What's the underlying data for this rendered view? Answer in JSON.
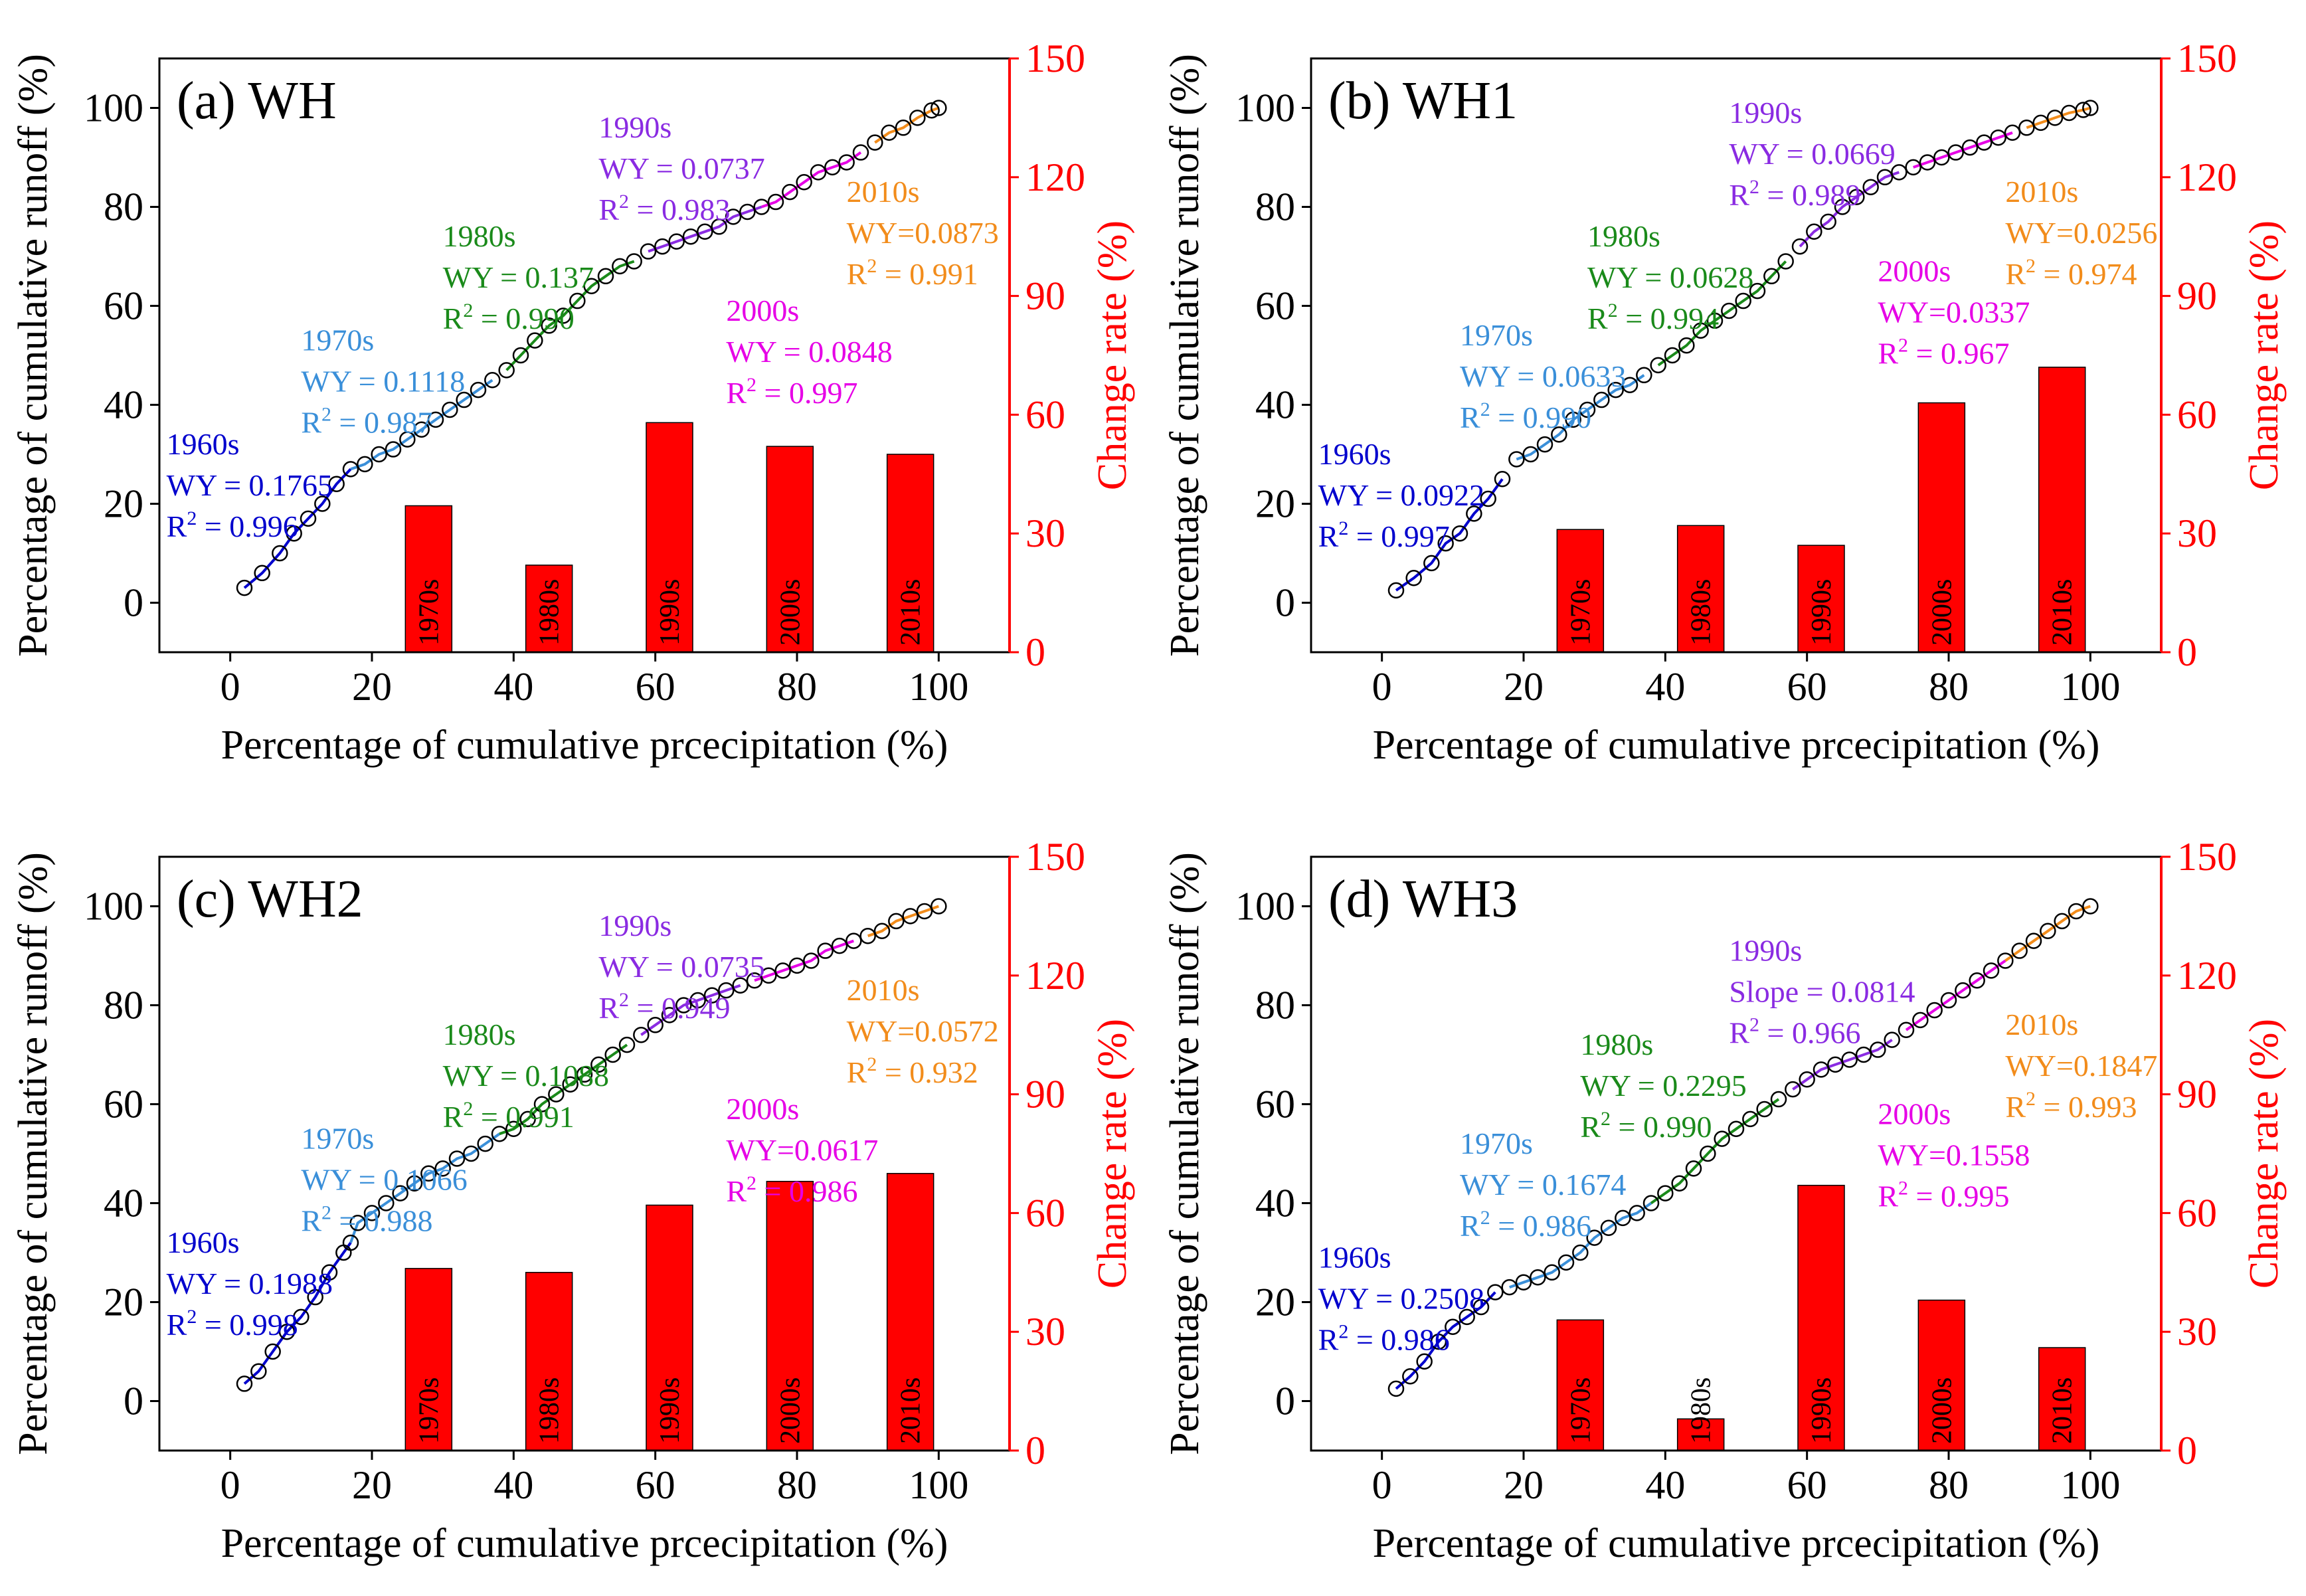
{
  "figure": {
    "left_axis_range": [
      -10,
      110
    ],
    "left_ticks": [
      0,
      20,
      40,
      60,
      80,
      100
    ],
    "right_axis_range": [
      0,
      150
    ],
    "right_ticks": [
      0,
      30,
      60,
      90,
      120,
      150
    ],
    "x_axis_range": [
      -10,
      110
    ],
    "x_ticks": [
      0,
      20,
      40,
      60,
      80,
      100
    ],
    "colors": {
      "1960s": "#0000cd",
      "1970s": "#3a8fd9",
      "1980s": "#1a8a1a",
      "1990s": "#8a2be2",
      "2000s": "#e600e6",
      "2010s": "#f28c1b",
      "bars": "#ff0000",
      "right_axis": "#ff0000"
    }
  },
  "chart_data": [
    {
      "type": "line+bar",
      "title": "(a) WH",
      "xlabel": "Percentage of cumulative prcecipitation (%)",
      "ylabel_left": "Percentage of cumulative runoff (%)",
      "ylabel_right": "Change rate (%)",
      "xlim": [
        -10,
        110
      ],
      "ylim_left": [
        -10,
        110
      ],
      "ylim_right": [
        0,
        150
      ],
      "curve": [
        [
          2,
          3
        ],
        [
          4.5,
          6
        ],
        [
          7,
          10
        ],
        [
          9,
          14
        ],
        [
          11,
          17
        ],
        [
          13,
          20
        ],
        [
          15,
          24
        ],
        [
          17,
          27
        ],
        [
          19,
          28
        ],
        [
          21,
          30
        ],
        [
          23,
          31
        ],
        [
          25,
          33
        ],
        [
          27,
          35
        ],
        [
          29,
          37
        ],
        [
          31,
          39
        ],
        [
          33,
          41
        ],
        [
          35,
          43
        ],
        [
          37,
          45
        ],
        [
          39,
          47
        ],
        [
          41,
          50
        ],
        [
          43,
          53
        ],
        [
          45,
          56
        ],
        [
          47,
          58
        ],
        [
          49,
          61
        ],
        [
          51,
          64
        ],
        [
          53,
          66
        ],
        [
          55,
          68
        ],
        [
          57,
          69
        ],
        [
          59,
          71
        ],
        [
          61,
          72
        ],
        [
          63,
          73
        ],
        [
          65,
          74
        ],
        [
          67,
          75
        ],
        [
          69,
          76
        ],
        [
          71,
          78
        ],
        [
          73,
          79
        ],
        [
          75,
          80
        ],
        [
          77,
          81
        ],
        [
          79,
          83
        ],
        [
          81,
          85
        ],
        [
          83,
          87
        ],
        [
          85,
          88
        ],
        [
          87,
          89
        ],
        [
          89,
          91
        ],
        [
          91,
          93
        ],
        [
          93,
          95
        ],
        [
          95,
          96
        ],
        [
          97,
          98
        ],
        [
          99,
          99.5
        ],
        [
          100,
          100
        ]
      ],
      "segments": [
        {
          "decade": "1960s",
          "x_range": [
            2,
            17
          ],
          "label": "1960s",
          "eq": "WY = 0.1765",
          "r2": "0.996"
        },
        {
          "decade": "1970s",
          "x_range": [
            17,
            38
          ],
          "label": "1970s",
          "eq": "WY = 0.1118",
          "r2": "0.987"
        },
        {
          "decade": "1980s",
          "x_range": [
            38,
            58
          ],
          "label": "1980s",
          "eq": "WY = 0.137",
          "r2": "0.990"
        },
        {
          "decade": "1990s",
          "x_range": [
            58,
            75
          ],
          "label": "1990s",
          "eq": "WY = 0.0737",
          "r2": "0.983"
        },
        {
          "decade": "2000s",
          "x_range": [
            75,
            90
          ],
          "label": "2000s",
          "eq": "WY = 0.0848",
          "r2": "0.997"
        },
        {
          "decade": "2010s",
          "x_range": [
            90,
            100
          ],
          "label": "2010s",
          "eq": "WY=0.0873",
          "r2": "0.991"
        }
      ],
      "bars": [
        {
          "label": "1970s",
          "x": 28,
          "value": 37
        },
        {
          "label": "1980s",
          "x": 45,
          "value": 22
        },
        {
          "label": "1990s",
          "x": 62,
          "value": 58
        },
        {
          "label": "2000s",
          "x": 79,
          "value": 52
        },
        {
          "label": "2010s",
          "x": 96,
          "value": 50
        }
      ]
    },
    {
      "type": "line+bar",
      "title": "(b) WH1",
      "xlabel": "Percentage of cumulative prcecipitation (%)",
      "ylabel_left": "Percentage of cumulative runoff (%)",
      "ylabel_right": "Change rate (%)",
      "xlim": [
        -10,
        110
      ],
      "ylim_left": [
        -10,
        110
      ],
      "ylim_right": [
        0,
        150
      ],
      "curve": [
        [
          2,
          2.5
        ],
        [
          4.5,
          5
        ],
        [
          7,
          8
        ],
        [
          9,
          12
        ],
        [
          11,
          14
        ],
        [
          13,
          18
        ],
        [
          15,
          21
        ],
        [
          17,
          25
        ],
        [
          19,
          29
        ],
        [
          21,
          30
        ],
        [
          23,
          32
        ],
        [
          25,
          34
        ],
        [
          27,
          37
        ],
        [
          29,
          39
        ],
        [
          31,
          41
        ],
        [
          33,
          43
        ],
        [
          35,
          44
        ],
        [
          37,
          46
        ],
        [
          39,
          48
        ],
        [
          41,
          50
        ],
        [
          43,
          52
        ],
        [
          45,
          55
        ],
        [
          47,
          57
        ],
        [
          49,
          59
        ],
        [
          51,
          61
        ],
        [
          53,
          63
        ],
        [
          55,
          66
        ],
        [
          57,
          69
        ],
        [
          59,
          72
        ],
        [
          61,
          75
        ],
        [
          63,
          77
        ],
        [
          65,
          80
        ],
        [
          67,
          82
        ],
        [
          69,
          84
        ],
        [
          71,
          86
        ],
        [
          73,
          87
        ],
        [
          75,
          88
        ],
        [
          77,
          89
        ],
        [
          79,
          90
        ],
        [
          81,
          91
        ],
        [
          83,
          92
        ],
        [
          85,
          93
        ],
        [
          87,
          94
        ],
        [
          89,
          95
        ],
        [
          91,
          96
        ],
        [
          93,
          97
        ],
        [
          95,
          98
        ],
        [
          97,
          99
        ],
        [
          99,
          99.6
        ],
        [
          100,
          100
        ]
      ],
      "segments": [
        {
          "decade": "1960s",
          "x_range": [
            2,
            18
          ],
          "label": "1960s",
          "eq": "WY = 0.0922",
          "r2": "0.997"
        },
        {
          "decade": "1970s",
          "x_range": [
            18,
            38
          ],
          "label": "1970s",
          "eq": "WY = 0.0633",
          "r2": "0.990"
        },
        {
          "decade": "1980s",
          "x_range": [
            38,
            58
          ],
          "label": "1980s",
          "eq": "WY = 0.0628",
          "r2": "0.994"
        },
        {
          "decade": "1990s",
          "x_range": [
            58,
            74
          ],
          "label": "1990s",
          "eq": "WY = 0.0669",
          "r2": "0.989"
        },
        {
          "decade": "2000s",
          "x_range": [
            74,
            90
          ],
          "label": "2000s",
          "eq": "WY=0.0337",
          "r2": "0.967"
        },
        {
          "decade": "2010s",
          "x_range": [
            90,
            100
          ],
          "label": "2010s",
          "eq": "WY=0.0256",
          "r2": "0.974"
        }
      ],
      "bars": [
        {
          "label": "1970s",
          "x": 28,
          "value": 31
        },
        {
          "label": "1980s",
          "x": 45,
          "value": 32
        },
        {
          "label": "1990s",
          "x": 62,
          "value": 27
        },
        {
          "label": "2000s",
          "x": 79,
          "value": 63
        },
        {
          "label": "2010s",
          "x": 96,
          "value": 72
        }
      ]
    },
    {
      "type": "line+bar",
      "title": "(c) WH2",
      "xlabel": "Percentage of cumulative prcecipitation (%)",
      "ylabel_left": "Percentage of cumulative runoff (%)",
      "ylabel_right": "Change rate (%)",
      "xlim": [
        -10,
        110
      ],
      "ylim_left": [
        -10,
        110
      ],
      "ylim_right": [
        0,
        150
      ],
      "curve": [
        [
          2,
          3.5
        ],
        [
          4,
          6
        ],
        [
          6,
          10
        ],
        [
          8,
          14
        ],
        [
          10,
          17
        ],
        [
          12,
          21
        ],
        [
          14,
          26
        ],
        [
          16,
          30
        ],
        [
          17,
          32
        ],
        [
          18,
          36
        ],
        [
          20,
          38
        ],
        [
          22,
          40
        ],
        [
          24,
          42
        ],
        [
          26,
          44
        ],
        [
          28,
          46
        ],
        [
          30,
          47
        ],
        [
          32,
          49
        ],
        [
          34,
          50
        ],
        [
          36,
          52
        ],
        [
          38,
          54
        ],
        [
          40,
          55
        ],
        [
          42,
          57
        ],
        [
          44,
          60
        ],
        [
          46,
          62
        ],
        [
          48,
          64
        ],
        [
          50,
          66
        ],
        [
          52,
          68
        ],
        [
          54,
          70
        ],
        [
          56,
          72
        ],
        [
          58,
          74
        ],
        [
          60,
          76
        ],
        [
          62,
          78
        ],
        [
          64,
          80
        ],
        [
          66,
          81
        ],
        [
          68,
          82
        ],
        [
          70,
          83
        ],
        [
          72,
          84
        ],
        [
          74,
          85
        ],
        [
          76,
          86
        ],
        [
          78,
          87
        ],
        [
          80,
          88
        ],
        [
          82,
          89
        ],
        [
          84,
          91
        ],
        [
          86,
          92
        ],
        [
          88,
          93
        ],
        [
          90,
          94
        ],
        [
          92,
          95
        ],
        [
          94,
          97
        ],
        [
          96,
          98
        ],
        [
          98,
          99
        ],
        [
          100,
          100
        ]
      ],
      "segments": [
        {
          "decade": "1960s",
          "x_range": [
            2,
            17
          ],
          "label": "1960s",
          "eq": "WY = 0.1988",
          "r2": "0.998"
        },
        {
          "decade": "1970s",
          "x_range": [
            17,
            38
          ],
          "label": "1970s",
          "eq": "WY = 0.1066",
          "r2": "0.988"
        },
        {
          "decade": "1980s",
          "x_range": [
            38,
            57
          ],
          "label": "1980s",
          "eq": "WY = 0.1088",
          "r2": "0.991"
        },
        {
          "decade": "1990s",
          "x_range": [
            57,
            73
          ],
          "label": "1990s",
          "eq": "WY = 0.0735",
          "r2": "0.949"
        },
        {
          "decade": "2000s",
          "x_range": [
            73,
            89
          ],
          "label": "2000s",
          "eq": "WY=0.0617",
          "r2": "0.986"
        },
        {
          "decade": "2010s",
          "x_range": [
            89,
            100
          ],
          "label": "2010s",
          "eq": "WY=0.0572",
          "r2": "0.932"
        }
      ],
      "bars": [
        {
          "label": "1970s",
          "x": 28,
          "value": 46
        },
        {
          "label": "1980s",
          "x": 45,
          "value": 45
        },
        {
          "label": "1990s",
          "x": 62,
          "value": 62
        },
        {
          "label": "2000s",
          "x": 79,
          "value": 68
        },
        {
          "label": "2010s",
          "x": 96,
          "value": 70
        }
      ]
    },
    {
      "type": "line+bar",
      "title": "(d) WH3",
      "xlabel": "Percentage of cumulative prcecipitation (%)",
      "ylabel_left": "Percentage of cumulative runoff (%)",
      "ylabel_right": "Change rate (%)",
      "xlim": [
        -10,
        110
      ],
      "ylim_left": [
        -10,
        110
      ],
      "ylim_right": [
        0,
        150
      ],
      "curve": [
        [
          2,
          2.5
        ],
        [
          4,
          5
        ],
        [
          6,
          8
        ],
        [
          8,
          12
        ],
        [
          10,
          15
        ],
        [
          12,
          17
        ],
        [
          14,
          19
        ],
        [
          16,
          22
        ],
        [
          18,
          23
        ],
        [
          20,
          24
        ],
        [
          22,
          25
        ],
        [
          24,
          26
        ],
        [
          26,
          28
        ],
        [
          28,
          30
        ],
        [
          30,
          33
        ],
        [
          32,
          35
        ],
        [
          34,
          37
        ],
        [
          36,
          38
        ],
        [
          38,
          40
        ],
        [
          40,
          42
        ],
        [
          42,
          44
        ],
        [
          44,
          47
        ],
        [
          46,
          50
        ],
        [
          48,
          53
        ],
        [
          50,
          55
        ],
        [
          52,
          57
        ],
        [
          54,
          59
        ],
        [
          56,
          61
        ],
        [
          58,
          63
        ],
        [
          60,
          65
        ],
        [
          62,
          67
        ],
        [
          64,
          68
        ],
        [
          66,
          69
        ],
        [
          68,
          70
        ],
        [
          70,
          71
        ],
        [
          72,
          73
        ],
        [
          74,
          75
        ],
        [
          76,
          77
        ],
        [
          78,
          79
        ],
        [
          80,
          81
        ],
        [
          82,
          83
        ],
        [
          84,
          85
        ],
        [
          86,
          87
        ],
        [
          88,
          89
        ],
        [
          90,
          91
        ],
        [
          92,
          93
        ],
        [
          94,
          95
        ],
        [
          96,
          97
        ],
        [
          98,
          99
        ],
        [
          100,
          100
        ]
      ],
      "segments": [
        {
          "decade": "1960s",
          "x_range": [
            2,
            17
          ],
          "label": "1960s",
          "eq": "WY = 0.2508",
          "r2": "0.986"
        },
        {
          "decade": "1970s",
          "x_range": [
            17,
            38
          ],
          "label": "1970s",
          "eq": "WY = 0.1674",
          "r2": "0.986"
        },
        {
          "decade": "1980s",
          "x_range": [
            38,
            57
          ],
          "label": "1980s",
          "eq": "WY = 0.2295",
          "r2": "0.990"
        },
        {
          "decade": "1990s",
          "x_range": [
            57,
            73
          ],
          "label": "1990s",
          "eq": "Slope = 0.0814",
          "r2": "0.966"
        },
        {
          "decade": "2000s",
          "x_range": [
            73,
            88
          ],
          "label": "2000s",
          "eq": "WY=0.1558",
          "r2": "0.995"
        },
        {
          "decade": "2010s",
          "x_range": [
            88,
            100
          ],
          "label": "2010s",
          "eq": "WY=0.1847",
          "r2": "0.993"
        }
      ],
      "bars": [
        {
          "label": "1970s",
          "x": 28,
          "value": 33
        },
        {
          "label": "1980s",
          "x": 45,
          "value": 8
        },
        {
          "label": "1990s",
          "x": 62,
          "value": 67
        },
        {
          "label": "2000s",
          "x": 79,
          "value": 38
        },
        {
          "label": "2010s",
          "x": 96,
          "value": 26
        }
      ]
    }
  ]
}
